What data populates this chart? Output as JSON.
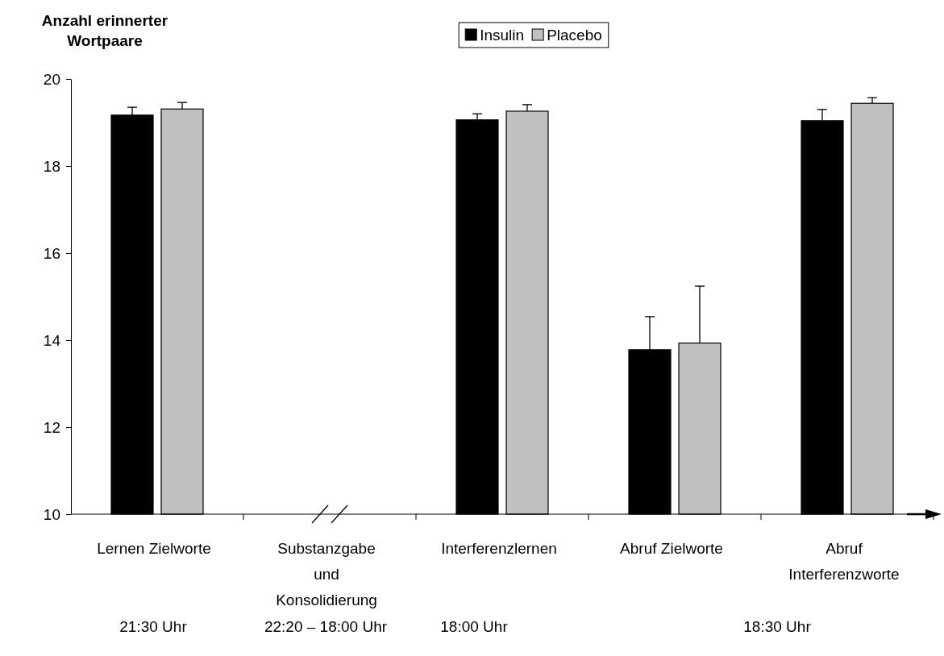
{
  "chart_data": {
    "type": "bar",
    "ylabel": "Anzahl erinnerter\nWortpaare",
    "categories": [
      "Lernen Zielworte",
      "Substanzgabe\nund\nKonsolidierung",
      "Interferenzlernen",
      "Abruf Zielworte",
      "Abruf\nInterferenzworte"
    ],
    "series": [
      {
        "name": "Insulin",
        "color": "#000000",
        "values": [
          19.17,
          null,
          19.06,
          13.78,
          19.04
        ],
        "errors": [
          [
            19.17,
            19.35
          ],
          null,
          [
            19.06,
            19.2
          ],
          [
            13.78,
            14.54
          ],
          [
            19.04,
            19.3
          ]
        ]
      },
      {
        "name": "Placebo",
        "color": "#c0c0c0",
        "values": [
          19.31,
          null,
          19.26,
          13.93,
          19.44
        ],
        "errors": [
          [
            19.31,
            19.46
          ],
          null,
          [
            19.26,
            19.41
          ],
          [
            13.93,
            15.24
          ],
          [
            19.44,
            19.57
          ]
        ]
      }
    ],
    "ylim": [
      10,
      20
    ],
    "yticks": [
      10,
      12,
      14,
      16,
      18,
      20
    ],
    "grid": false,
    "legend": "top",
    "annotations": [
      "21:30 Uhr",
      "22:20 – 18:00 Uhr",
      "18:00 Uhr",
      "18:30 Uhr"
    ]
  }
}
